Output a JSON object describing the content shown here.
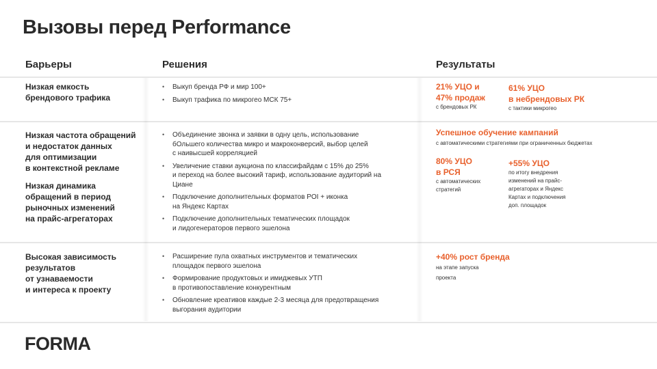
{
  "title": "Вызовы перед Performance",
  "headers": {
    "barriers": "Барьеры",
    "solutions": "Решения",
    "results": "Результаты"
  },
  "accent_color": "#e8602c",
  "rows": [
    {
      "barriers": [
        "Низкая емкость\nбрендового трафика"
      ],
      "solutions": [
        "Выкуп бренда РФ и мир 100+",
        "Выкуп трафика по микрогео МСК 75+"
      ],
      "results": [
        {
          "big": "21% УЦО и\n47% продаж",
          "small": "с брендовых РК"
        },
        {
          "big": "61% УЦО\nв небрендовых РК",
          "small": "с тактики микрогео"
        }
      ]
    },
    {
      "barriers": [
        "Низкая частота обращений\nи недостаток данных\nдля оптимизации\nв контекстной рекламе",
        "Низкая динамика\nобращений в период\nрыночных изменений\nна прайс-агрегаторах"
      ],
      "solutions": [
        "Объединение звонка и заявки в одну цель, использование\nбОльшего количества микро и макроконверсий, выбор целей\nс наивысшей корреляцией",
        "Увеличение ставки аукциона по классифайдам с 15% до 25%\nи переход на более высокий тариф, использование аудиторий на\nЦиане",
        "Подключение дополнительных форматов POI + иконка\nна Яндекс Картах",
        "Подключение дополнительных тематических площадок\nи лидогенераторов первого эшелона"
      ],
      "results": [
        {
          "big": "Успешное обучение кампаний",
          "small": "с автоматическими стратегиями при ограниченных бюджетах"
        },
        {
          "big": "80% УЦО\nв РСЯ",
          "small": "с автоматических\nстратегий"
        },
        {
          "big": "+55% УЦО",
          "small": "по итогу внедрения\nизменений на прайс-\nагрегаторах и Яндекс\nКартах и подключения\nдоп. площадок"
        }
      ]
    },
    {
      "barriers": [
        "Высокая зависимость\nрезультатов\nот узнаваемости\nи интереса к проекту"
      ],
      "solutions": [
        "Расширение пула охватных инструментов и тематических\nплощадок первого эшелона",
        "Формирование продуктовых и имиджевых УТП\nв противопоставление конкурентным",
        "Обновление креативов каждые 2-3 месяца для предотвращения\nвыгорания аудитории"
      ],
      "results": [
        {
          "big": "+40% рост бренда",
          "small": "на этапе запуска\nпроекта"
        }
      ]
    }
  ],
  "logo": "FORMA"
}
